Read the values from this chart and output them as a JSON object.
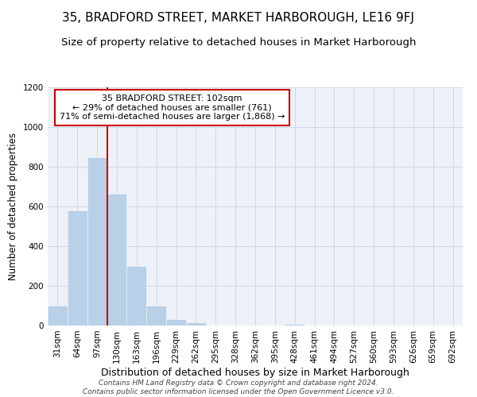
{
  "title": "35, BRADFORD STREET, MARKET HARBOROUGH, LE16 9FJ",
  "subtitle": "Size of property relative to detached houses in Market Harborough",
  "xlabel": "Distribution of detached houses by size in Market Harborough",
  "ylabel": "Number of detached properties",
  "footer_lines": [
    "Contains HM Land Registry data © Crown copyright and database right 2024.",
    "Contains public sector information licensed under the Open Government Licence v3.0."
  ],
  "bin_labels": [
    "31sqm",
    "64sqm",
    "97sqm",
    "130sqm",
    "163sqm",
    "196sqm",
    "229sqm",
    "262sqm",
    "295sqm",
    "328sqm",
    "362sqm",
    "395sqm",
    "428sqm",
    "461sqm",
    "494sqm",
    "527sqm",
    "560sqm",
    "593sqm",
    "626sqm",
    "659sqm",
    "692sqm"
  ],
  "bar_values": [
    100,
    580,
    850,
    665,
    300,
    100,
    33,
    18,
    0,
    0,
    0,
    0,
    10,
    0,
    0,
    0,
    0,
    0,
    0,
    0,
    0
  ],
  "bar_color": "#b8d0e8",
  "marker_line_index": 2,
  "marker_label": "35 BRADFORD STREET: 102sqm",
  "annotation_line1": "← 29% of detached houses are smaller (761)",
  "annotation_line2": "71% of semi-detached houses are larger (1,868) →",
  "annotation_box_color": "#ffffff",
  "annotation_box_edgecolor": "#cc0000",
  "marker_line_color": "#cc0000",
  "ylim": [
    0,
    1200
  ],
  "yticks": [
    0,
    200,
    400,
    600,
    800,
    1000,
    1200
  ],
  "title_fontsize": 11,
  "subtitle_fontsize": 9.5,
  "xlabel_fontsize": 9,
  "ylabel_fontsize": 8.5,
  "tick_fontsize": 7.5,
  "annot_fontsize": 8,
  "footer_fontsize": 6.5,
  "bg_color": "#eef2f8",
  "grid_color": "#ccd8e8"
}
